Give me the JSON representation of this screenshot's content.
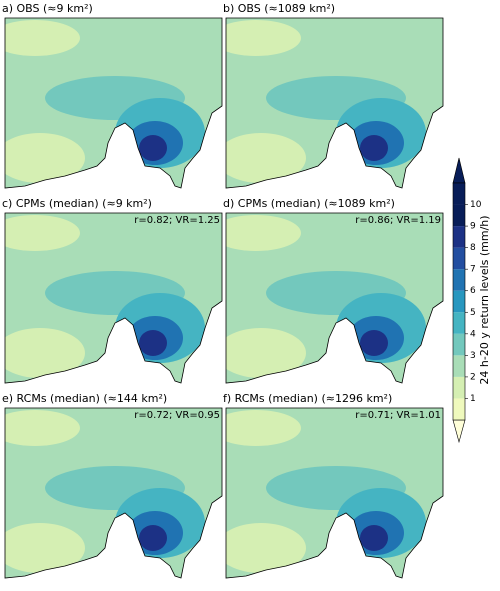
{
  "panels": [
    {
      "title": "a) OBS (≈9 km²)"
    },
    {
      "title": "b) OBS (≈1089 km²)"
    },
    {
      "title": "c) CPMs (median) (≈9 km²)",
      "annotation": "r=0.82; VR=1.25"
    },
    {
      "title": "d) CPMs (median) (≈1089 km²)",
      "annotation": "r=0.86; VR=1.19"
    },
    {
      "title": "e) RCMs (median) (≈144 km²)",
      "annotation": "r=0.72; VR=0.95"
    },
    {
      "title": "f) RCMs (median) (≈1296 km²)",
      "annotation": "r=0.71; VR=1.01"
    }
  ],
  "colorbar": {
    "label": "24 h-20 y return levels (mm/h)",
    "ticks": [
      1,
      2,
      3,
      4,
      5,
      6,
      7,
      8,
      9,
      10
    ],
    "colors": [
      "#ffffd9",
      "#eff9bd",
      "#d5efb3",
      "#a9ddb7",
      "#73c8bd",
      "#45b4c2",
      "#2897bf",
      "#2073b2",
      "#234ea0",
      "#1c3185",
      "#081d58"
    ]
  }
}
